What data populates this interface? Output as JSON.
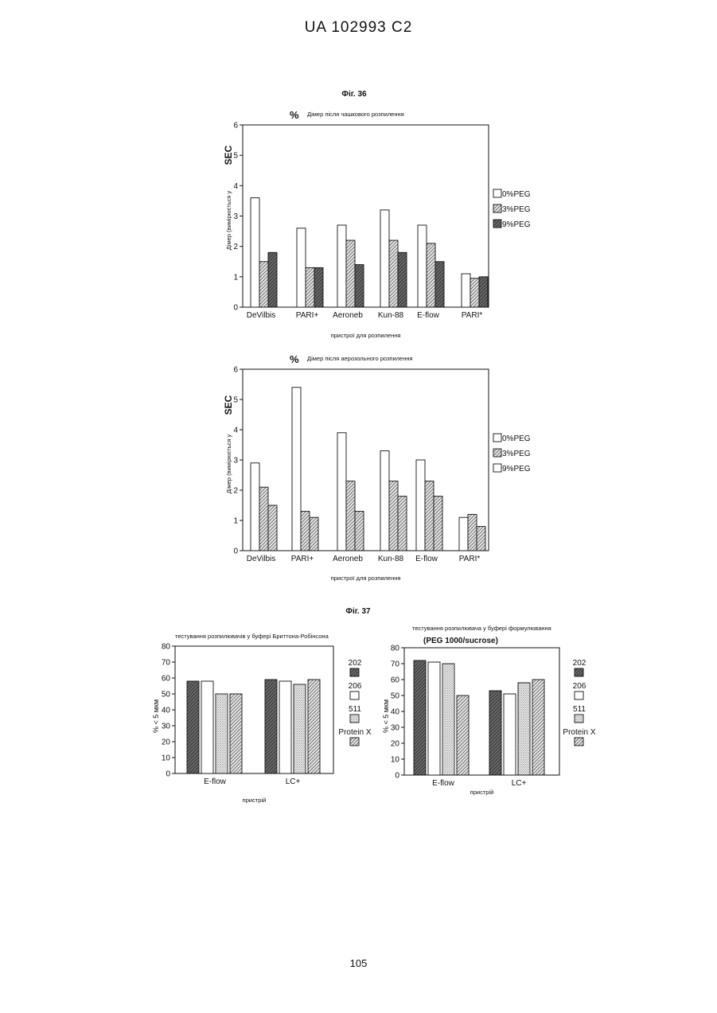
{
  "header": {
    "text": "UA   102993   C2"
  },
  "fig36_label": "Фіг. 36",
  "fig37_label": "Фіг. 37",
  "page_number": "105",
  "colors": {
    "white": "#ffffff",
    "hatch": "#bdbdbd",
    "dark": "#555555",
    "dotted": "#d9d9d9",
    "line": "#111111"
  },
  "chart_data": [
    {
      "id": "c1",
      "type": "bar",
      "title_prefix": "%",
      "title": "Дімер після чашкового розпилення",
      "ylabel_sec": "SEC",
      "ylabel": "Дімер (вимірюється у",
      "xlabel": "пристрої для розпилення",
      "ylim": [
        0,
        6
      ],
      "yticks": [
        "0",
        "1",
        "2",
        "3",
        "4",
        "5",
        "6"
      ],
      "categories": [
        "DeVilbis",
        "PARI+",
        "Aeroneb",
        "Kun-88",
        "E-flow",
        "PARI*"
      ],
      "legend_placement": "right",
      "series": [
        {
          "name": "0%PEG",
          "style": "white",
          "values": [
            3.6,
            2.6,
            2.7,
            3.2,
            2.7,
            1.1
          ]
        },
        {
          "name": "3%PEG",
          "style": "hatch",
          "values": [
            1.5,
            1.3,
            2.2,
            2.2,
            2.1,
            0.95
          ]
        },
        {
          "name": "9%PEG",
          "style": "dark",
          "values": [
            1.8,
            1.3,
            1.4,
            1.8,
            1.5,
            1.0
          ]
        }
      ]
    },
    {
      "id": "c2",
      "type": "bar",
      "title_prefix": "%",
      "title": "Дімер після аерозольного розпилення",
      "ylabel_sec": "SEC",
      "ylabel": "Дімер (вимірюється у",
      "xlabel": "пристрої для розпилення",
      "ylim": [
        0,
        6
      ],
      "yticks": [
        "0",
        "1",
        "2",
        "3",
        "4",
        "5",
        "6"
      ],
      "categories": [
        "DeVilbis",
        "PARI+",
        "Aeroneb",
        "Kun-88",
        "E-flow",
        "PARI*"
      ],
      "legend_placement": "right",
      "series": [
        {
          "name": "0%PEG",
          "style": "white",
          "values": [
            2.9,
            5.4,
            3.9,
            3.3,
            3.0,
            1.1
          ]
        },
        {
          "name": "3%PEG",
          "style": "hatch",
          "values": [
            2.1,
            1.3,
            2.3,
            2.3,
            2.3,
            1.2
          ]
        },
        {
          "name": "9%PEG",
          "style": "hatch",
          "legend_style": "white",
          "values": [
            1.5,
            1.1,
            1.3,
            1.8,
            1.8,
            0.8
          ]
        }
      ]
    },
    {
      "id": "c3",
      "type": "bar",
      "title": "тестування розпилювачів у буфері Бриттона-Робінсона",
      "subtitle": "",
      "ylabel": "% < 5 мкм",
      "xlabel": "пристрій",
      "ylim": [
        0,
        80
      ],
      "yticks": [
        "0",
        "10",
        "20",
        "30",
        "40",
        "50",
        "60",
        "70",
        "80"
      ],
      "categories": [
        "E-flow",
        "LC+"
      ],
      "legend_placement": "right",
      "series": [
        {
          "name": "202",
          "style": "dark",
          "values": [
            58,
            59
          ]
        },
        {
          "name": "206",
          "style": "white",
          "values": [
            58,
            58
          ]
        },
        {
          "name": "511",
          "style": "dotted",
          "values": [
            50,
            56
          ]
        },
        {
          "name": "Protein X",
          "style": "hatch",
          "values": [
            50,
            59
          ]
        }
      ]
    },
    {
      "id": "c4",
      "type": "bar",
      "title": "тестування розпилювача у буфері формулювання",
      "subtitle": "(PEG 1000/sucrose)",
      "ylabel": "% < 5 мкм",
      "xlabel": "пристрій",
      "ylim": [
        0,
        80
      ],
      "yticks": [
        "0",
        "10",
        "20",
        "30",
        "40",
        "50",
        "60",
        "70",
        "80"
      ],
      "categories": [
        "E-flow",
        "LC+"
      ],
      "legend_placement": "right",
      "series": [
        {
          "name": "202",
          "style": "dark",
          "values": [
            72,
            53
          ]
        },
        {
          "name": "206",
          "style": "white",
          "values": [
            71,
            51
          ]
        },
        {
          "name": "511",
          "style": "dotted",
          "values": [
            70,
            58
          ]
        },
        {
          "name": "Protein X",
          "style": "hatch",
          "values": [
            50,
            60
          ]
        }
      ]
    }
  ]
}
